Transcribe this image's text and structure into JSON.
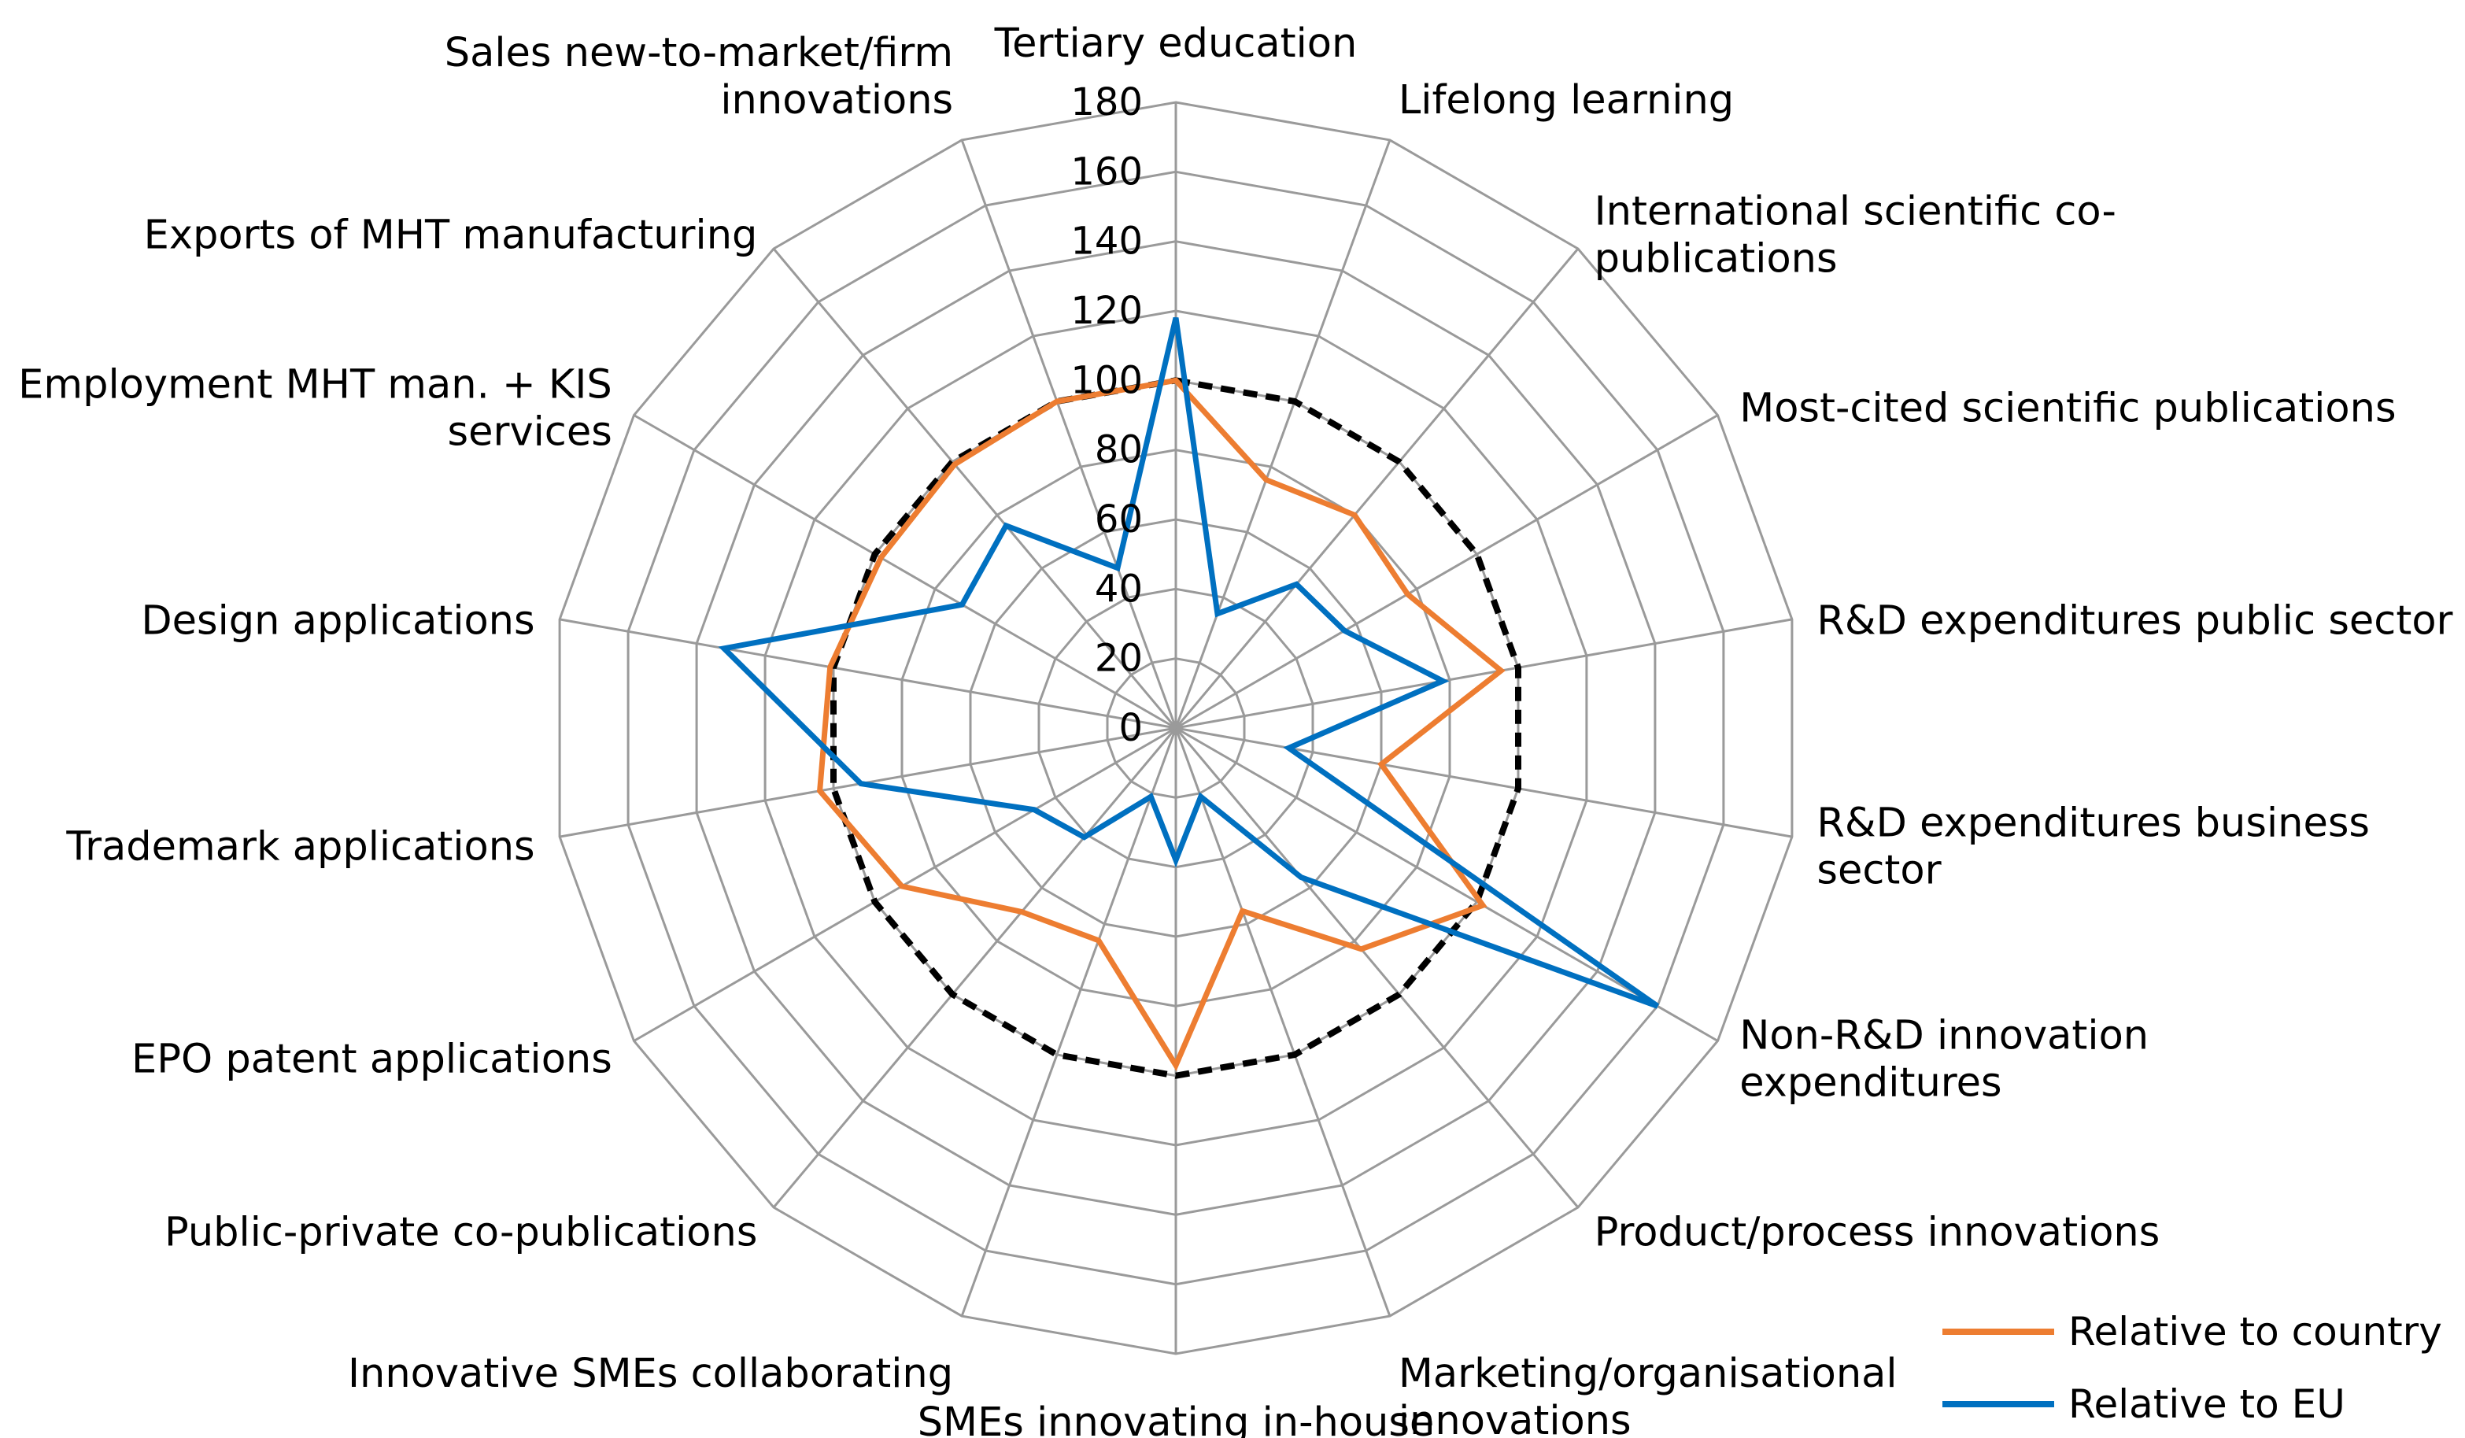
{
  "chart_data": {
    "type": "radar",
    "title": "",
    "categories": [
      "Tertiary education",
      "Lifelong learning",
      "International scientific co-publications",
      "Most-cited scientific publications",
      "R&D expenditures public sector",
      "R&D expenditures business sector",
      "Non-R&D innovation expenditures",
      "Product/process innovations",
      "Marketing/organisational innovations",
      "SMEs innovating in-house",
      "Innovative SMEs collaborating",
      "Public-private co-publications",
      "EPO patent applications",
      "Trademark applications",
      "Design applications",
      "Employment MHT man. + KIS services",
      "Exports of MHT manufacturing",
      "Sales new-to-market/firm innovations"
    ],
    "category_label_lines": [
      [
        "Tertiary education"
      ],
      [
        "Lifelong learning"
      ],
      [
        "International scientific co-",
        "publications"
      ],
      [
        "Most-cited scientific publications"
      ],
      [
        "R&D expenditures public sector"
      ],
      [
        "R&D expenditures business",
        "sector"
      ],
      [
        "Non-R&D innovation",
        "expenditures"
      ],
      [
        "Product/process innovations"
      ],
      [
        "Marketing/organisational",
        "innovations"
      ],
      [
        "SMEs innovating in-house"
      ],
      [
        "Innovative SMEs collaborating"
      ],
      [
        "Public-private co-publications"
      ],
      [
        "EPO patent applications"
      ],
      [
        "Trademark applications"
      ],
      [
        "Design applications"
      ],
      [
        "Employment MHT man. + KIS",
        "services"
      ],
      [
        "Exports of MHT manufacturing"
      ],
      [
        "Sales new-to-market/firm",
        "innovations"
      ]
    ],
    "ticks": [
      0,
      20,
      40,
      60,
      80,
      100,
      120,
      140,
      160,
      180
    ],
    "range": [
      0,
      180
    ],
    "grid": true,
    "reference_line": {
      "value": 100,
      "style": "dashed",
      "color": "#000000"
    },
    "series": [
      {
        "name": "Relative to country",
        "color": "#ED7D31",
        "values": [
          100,
          76,
          80,
          77,
          95,
          60,
          102,
          83,
          56,
          97,
          65,
          69,
          91,
          104,
          101,
          98,
          99,
          100
        ]
      },
      {
        "name": "Relative to EU",
        "color": "#0070C0",
        "values": [
          118,
          35,
          54,
          56,
          78,
          33,
          160,
          56,
          21,
          38,
          21,
          41,
          47,
          92,
          132,
          71,
          76,
          49
        ]
      }
    ],
    "legend": {
      "position": "bottom-right"
    },
    "colors": {
      "grid": "#9a9a9a",
      "spokes": "#9a9a9a",
      "reference": "#000000"
    }
  }
}
